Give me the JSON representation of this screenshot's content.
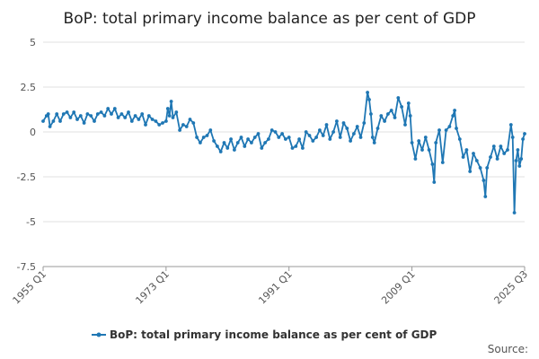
{
  "chart_data": {
    "type": "line",
    "title": "BoP: total primary income balance as per cent of GDP",
    "xlabel": "",
    "ylabel": "",
    "ylim": [
      -7.5,
      5
    ],
    "yticks": [
      5,
      2.5,
      0,
      -2.5,
      -5,
      -7.5
    ],
    "yticklabels": [
      "5",
      "2.5",
      "0",
      "-2.5",
      "-5",
      "-7.5"
    ],
    "xrange": [
      1955.0,
      2025.5
    ],
    "xticks": [
      1955.0,
      1973.0,
      1991.0,
      2009.0,
      2025.5
    ],
    "xticklabels": [
      "1955 Q1",
      "1973 Q1",
      "1991 Q1",
      "2009 Q1",
      "2025 Q3"
    ],
    "legend_position": "bottom-center",
    "grid": true,
    "series": [
      {
        "name": "BoP: total primary income balance as per cent of GDP",
        "color": "#1f77b4",
        "points": [
          [
            1955.0,
            0.6
          ],
          [
            1955.5,
            0.9
          ],
          [
            1955.75,
            1.0
          ],
          [
            1956.0,
            0.3
          ],
          [
            1956.5,
            0.6
          ],
          [
            1957.0,
            1.0
          ],
          [
            1957.5,
            0.6
          ],
          [
            1958.0,
            1.0
          ],
          [
            1958.5,
            1.1
          ],
          [
            1959.0,
            0.8
          ],
          [
            1959.5,
            1.1
          ],
          [
            1960.0,
            0.7
          ],
          [
            1960.5,
            0.9
          ],
          [
            1961.0,
            0.5
          ],
          [
            1961.5,
            1.0
          ],
          [
            1962.0,
            0.9
          ],
          [
            1962.5,
            0.6
          ],
          [
            1963.0,
            1.0
          ],
          [
            1963.5,
            1.1
          ],
          [
            1964.0,
            0.9
          ],
          [
            1964.5,
            1.3
          ],
          [
            1965.0,
            1.0
          ],
          [
            1965.5,
            1.3
          ],
          [
            1966.0,
            0.8
          ],
          [
            1966.5,
            1.0
          ],
          [
            1967.0,
            0.8
          ],
          [
            1967.5,
            1.1
          ],
          [
            1968.0,
            0.6
          ],
          [
            1968.5,
            0.9
          ],
          [
            1969.0,
            0.7
          ],
          [
            1969.5,
            1.0
          ],
          [
            1970.0,
            0.4
          ],
          [
            1970.5,
            0.9
          ],
          [
            1971.0,
            0.7
          ],
          [
            1971.5,
            0.6
          ],
          [
            1972.0,
            0.4
          ],
          [
            1972.5,
            0.5
          ],
          [
            1973.0,
            0.6
          ],
          [
            1973.25,
            1.3
          ],
          [
            1973.5,
            0.9
          ],
          [
            1973.75,
            1.7
          ],
          [
            1974.0,
            0.8
          ],
          [
            1974.5,
            1.1
          ],
          [
            1975.0,
            0.1
          ],
          [
            1975.5,
            0.4
          ],
          [
            1976.0,
            0.3
          ],
          [
            1976.5,
            0.7
          ],
          [
            1977.0,
            0.5
          ],
          [
            1977.5,
            -0.3
          ],
          [
            1978.0,
            -0.6
          ],
          [
            1978.5,
            -0.3
          ],
          [
            1979.0,
            -0.2
          ],
          [
            1979.5,
            0.1
          ],
          [
            1980.0,
            -0.5
          ],
          [
            1980.5,
            -0.8
          ],
          [
            1981.0,
            -1.1
          ],
          [
            1981.5,
            -0.6
          ],
          [
            1982.0,
            -0.9
          ],
          [
            1982.5,
            -0.4
          ],
          [
            1983.0,
            -1.0
          ],
          [
            1983.5,
            -0.6
          ],
          [
            1984.0,
            -0.3
          ],
          [
            1984.5,
            -0.8
          ],
          [
            1985.0,
            -0.4
          ],
          [
            1985.5,
            -0.6
          ],
          [
            1986.0,
            -0.3
          ],
          [
            1986.5,
            -0.1
          ],
          [
            1987.0,
            -0.9
          ],
          [
            1987.5,
            -0.6
          ],
          [
            1988.0,
            -0.4
          ],
          [
            1988.5,
            0.1
          ],
          [
            1989.0,
            0.0
          ],
          [
            1989.5,
            -0.3
          ],
          [
            1990.0,
            -0.1
          ],
          [
            1990.5,
            -0.4
          ],
          [
            1991.0,
            -0.3
          ],
          [
            1991.5,
            -0.9
          ],
          [
            1992.0,
            -0.8
          ],
          [
            1992.5,
            -0.4
          ],
          [
            1993.0,
            -0.9
          ],
          [
            1993.5,
            0.0
          ],
          [
            1994.0,
            -0.2
          ],
          [
            1994.5,
            -0.5
          ],
          [
            1995.0,
            -0.3
          ],
          [
            1995.5,
            0.1
          ],
          [
            1996.0,
            -0.2
          ],
          [
            1996.5,
            0.4
          ],
          [
            1997.0,
            -0.4
          ],
          [
            1997.5,
            0.0
          ],
          [
            1998.0,
            0.6
          ],
          [
            1998.5,
            -0.3
          ],
          [
            1999.0,
            0.5
          ],
          [
            1999.5,
            0.2
          ],
          [
            2000.0,
            -0.5
          ],
          [
            2000.5,
            -0.1
          ],
          [
            2001.0,
            0.3
          ],
          [
            2001.5,
            -0.3
          ],
          [
            2002.0,
            0.5
          ],
          [
            2002.5,
            2.2
          ],
          [
            2002.75,
            1.8
          ],
          [
            2003.0,
            1.0
          ],
          [
            2003.25,
            -0.3
          ],
          [
            2003.5,
            -0.6
          ],
          [
            2004.0,
            0.2
          ],
          [
            2004.5,
            0.9
          ],
          [
            2005.0,
            0.6
          ],
          [
            2005.5,
            1.0
          ],
          [
            2006.0,
            1.2
          ],
          [
            2006.5,
            0.8
          ],
          [
            2007.0,
            1.9
          ],
          [
            2007.5,
            1.4
          ],
          [
            2008.0,
            0.4
          ],
          [
            2008.5,
            1.6
          ],
          [
            2008.75,
            0.9
          ],
          [
            2009.0,
            -0.6
          ],
          [
            2009.5,
            -1.5
          ],
          [
            2010.0,
            -0.5
          ],
          [
            2010.5,
            -1.0
          ],
          [
            2011.0,
            -0.3
          ],
          [
            2011.5,
            -1.0
          ],
          [
            2012.0,
            -1.8
          ],
          [
            2012.25,
            -2.8
          ],
          [
            2012.5,
            -0.6
          ],
          [
            2013.0,
            0.1
          ],
          [
            2013.5,
            -1.7
          ],
          [
            2014.0,
            0.1
          ],
          [
            2014.5,
            0.3
          ],
          [
            2015.0,
            0.9
          ],
          [
            2015.25,
            1.2
          ],
          [
            2015.5,
            0.2
          ],
          [
            2016.0,
            -0.4
          ],
          [
            2016.5,
            -1.4
          ],
          [
            2017.0,
            -1.0
          ],
          [
            2017.5,
            -2.2
          ],
          [
            2018.0,
            -1.2
          ],
          [
            2018.5,
            -1.6
          ],
          [
            2019.0,
            -2.0
          ],
          [
            2019.5,
            -2.7
          ],
          [
            2019.75,
            -3.6
          ],
          [
            2020.0,
            -2.0
          ],
          [
            2020.5,
            -1.4
          ],
          [
            2021.0,
            -0.8
          ],
          [
            2021.5,
            -1.5
          ],
          [
            2022.0,
            -0.8
          ],
          [
            2022.5,
            -1.2
          ],
          [
            2023.0,
            -1.0
          ],
          [
            2023.5,
            0.4
          ],
          [
            2023.75,
            -0.3
          ],
          [
            2024.0,
            -4.5
          ],
          [
            2024.25,
            -1.6
          ],
          [
            2024.5,
            -1.0
          ],
          [
            2024.75,
            -1.9
          ],
          [
            2025.0,
            -1.5
          ],
          [
            2025.25,
            -0.4
          ],
          [
            2025.5,
            -0.1
          ]
        ]
      }
    ],
    "source_text": "Source:"
  }
}
